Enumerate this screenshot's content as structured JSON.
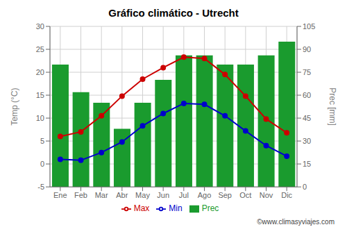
{
  "chart_data": {
    "type": "bar",
    "title": "Gráfico climático - Utrecht",
    "y_label": "Temp (°C)",
    "y2_label": "Prec [mm]",
    "categories": [
      "Ene",
      "Feb",
      "Mar",
      "Abr",
      "May",
      "Jun",
      "Jul",
      "Ago",
      "Sep",
      "Oct",
      "Nov",
      "Dic"
    ],
    "series": [
      {
        "name": "Prec",
        "type": "bar",
        "axis": "y2",
        "color": "#1a9b2e",
        "values": [
          80,
          62,
          55,
          38,
          55,
          70,
          86,
          86,
          80,
          80,
          86,
          95
        ]
      },
      {
        "name": "Min",
        "type": "line",
        "color": "#0000cc",
        "marker": "circle",
        "values": [
          1.0,
          0.8,
          2.5,
          4.8,
          8.3,
          11.0,
          13.2,
          13.0,
          10.5,
          7.2,
          4.0,
          1.7
        ]
      },
      {
        "name": "Max",
        "type": "line",
        "color": "#cc0000",
        "marker": "circle",
        "values": [
          6.0,
          7.0,
          10.5,
          14.8,
          18.5,
          21.0,
          23.3,
          23.0,
          19.5,
          14.8,
          9.8,
          6.8
        ]
      }
    ],
    "ylim": [
      -5,
      30
    ],
    "yticks": [
      -5,
      0,
      5,
      10,
      15,
      20,
      25,
      30
    ],
    "y2lim": [
      0,
      105
    ],
    "y2ticks": [
      0,
      15,
      30,
      45,
      60,
      75,
      90,
      105
    ],
    "grid": true,
    "legend": "bottom",
    "annotations": [
      "©www.climasyviajes.com"
    ]
  }
}
